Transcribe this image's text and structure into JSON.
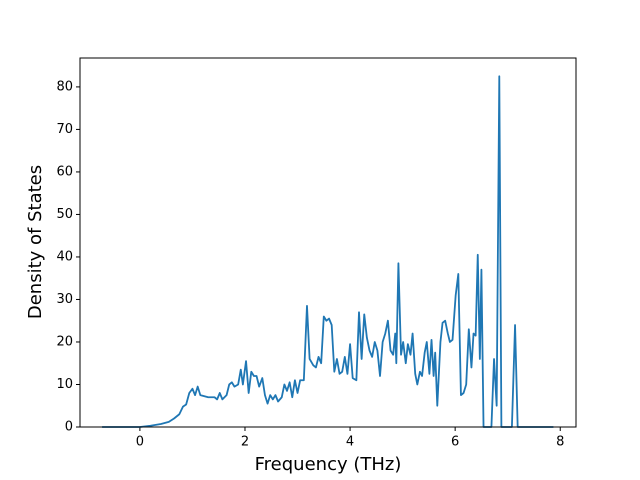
{
  "chart_data": {
    "type": "line",
    "xlabel": "Frequency (THz)",
    "ylabel": "Density of States",
    "x": [
      -0.72,
      0,
      0.2,
      0.4,
      0.55,
      0.65,
      0.75,
      0.82,
      0.88,
      0.94,
      1.0,
      1.05,
      1.1,
      1.15,
      1.3,
      1.42,
      1.47,
      1.52,
      1.57,
      1.65,
      1.7,
      1.75,
      1.8,
      1.87,
      1.92,
      1.96,
      2.02,
      2.07,
      2.12,
      2.17,
      2.22,
      2.27,
      2.33,
      2.38,
      2.43,
      2.48,
      2.53,
      2.58,
      2.63,
      2.7,
      2.75,
      2.8,
      2.85,
      2.9,
      2.95,
      3.0,
      3.05,
      3.12,
      3.18,
      3.23,
      3.3,
      3.35,
      3.4,
      3.45,
      3.5,
      3.55,
      3.6,
      3.65,
      3.7,
      3.75,
      3.8,
      3.85,
      3.9,
      3.95,
      4.0,
      4.05,
      4.12,
      4.17,
      4.22,
      4.27,
      4.32,
      4.37,
      4.42,
      4.47,
      4.52,
      4.57,
      4.62,
      4.67,
      4.72,
      4.77,
      4.82,
      4.86,
      4.88,
      4.92,
      4.97,
      5.01,
      5.06,
      5.1,
      5.15,
      5.19,
      5.24,
      5.28,
      5.33,
      5.37,
      5.42,
      5.46,
      5.51,
      5.55,
      5.59,
      5.62,
      5.66,
      5.72,
      5.76,
      5.81,
      5.86,
      5.9,
      5.95,
      6.01,
      6.06,
      6.11,
      6.16,
      6.21,
      6.26,
      6.31,
      6.35,
      6.39,
      6.43,
      6.47,
      6.5,
      6.54,
      6.69,
      6.74,
      6.79,
      6.84,
      6.88,
      7.08,
      7.14,
      7.19,
      7.87
    ],
    "series": [
      {
        "name": "DOS",
        "color": "#1f77b4",
        "values": [
          0,
          0,
          0.3,
          0.7,
          1.2,
          2,
          3,
          4.8,
          5.3,
          8,
          9,
          7.5,
          9.5,
          7.5,
          7,
          7,
          6.5,
          8,
          6.5,
          7.5,
          10,
          10.5,
          9.5,
          10,
          13.5,
          10,
          15.5,
          8,
          13,
          12,
          12,
          9.5,
          11.5,
          7.5,
          5.5,
          7.5,
          6.5,
          7.5,
          6,
          7,
          10,
          8.5,
          10.5,
          7,
          11,
          8,
          11,
          11,
          28.5,
          16,
          14.5,
          14,
          16.5,
          15,
          26,
          25,
          25.5,
          24,
          13,
          16,
          12.5,
          13,
          16.5,
          12.5,
          19.5,
          11.5,
          11,
          27,
          16,
          26.5,
          21,
          18,
          16.5,
          20,
          18,
          12,
          20,
          22,
          25,
          18,
          17,
          22,
          15,
          38.5,
          17,
          20,
          15,
          19.5,
          17,
          22,
          12.5,
          10,
          13,
          12,
          17.5,
          20,
          12.5,
          20.5,
          12,
          17.5,
          5,
          20,
          24.5,
          25,
          22,
          20,
          20.5,
          31,
          36,
          7.5,
          8,
          10,
          23,
          14,
          22,
          21.5,
          40.5,
          16,
          37,
          0,
          0,
          16,
          5,
          82.5,
          0,
          0,
          24,
          0,
          0
        ]
      }
    ],
    "xlim": [
      -1.14,
      8.3
    ],
    "ylim": [
      0,
      86.8
    ],
    "xticks": [
      0,
      2,
      4,
      6,
      8
    ],
    "yticks": [
      0,
      10,
      20,
      30,
      40,
      50,
      60,
      70,
      80
    ]
  }
}
